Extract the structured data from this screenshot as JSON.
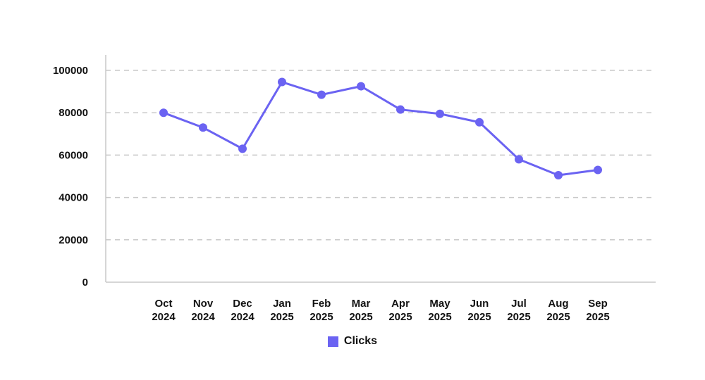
{
  "chart_data": {
    "type": "line",
    "categories": [
      [
        "Oct",
        "2024"
      ],
      [
        "Nov",
        "2024"
      ],
      [
        "Dec",
        "2024"
      ],
      [
        "Jan",
        "2025"
      ],
      [
        "Feb",
        "2025"
      ],
      [
        "Mar",
        "2025"
      ],
      [
        "Apr",
        "2025"
      ],
      [
        "May",
        "2025"
      ],
      [
        "Jun",
        "2025"
      ],
      [
        "Jul",
        "2025"
      ],
      [
        "Aug",
        "2025"
      ],
      [
        "Sep",
        "2025"
      ]
    ],
    "series": [
      {
        "name": "Clicks",
        "color": "#6b63f2",
        "values": [
          80000,
          73000,
          63000,
          94500,
          88500,
          92500,
          81500,
          79500,
          75500,
          58000,
          50500,
          53000
        ]
      }
    ],
    "ylim": [
      0,
      100000
    ],
    "yticks": [
      "0",
      "20000",
      "40000",
      "60000",
      "80000",
      "100000"
    ],
    "ytick_values": [
      0,
      20000,
      40000,
      60000,
      80000,
      100000
    ],
    "grid": true,
    "legend_position": "bottom-center"
  }
}
